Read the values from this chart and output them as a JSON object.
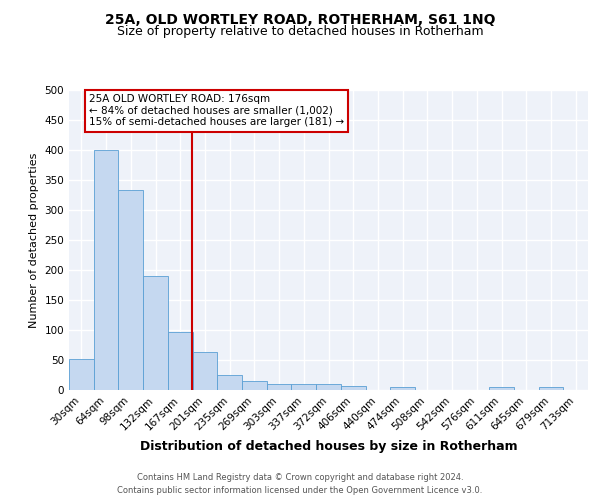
{
  "title": "25A, OLD WORTLEY ROAD, ROTHERHAM, S61 1NQ",
  "subtitle": "Size of property relative to detached houses in Rotherham",
  "xlabel": "Distribution of detached houses by size in Rotherham",
  "ylabel": "Number of detached properties",
  "categories": [
    "30sqm",
    "64sqm",
    "98sqm",
    "132sqm",
    "167sqm",
    "201sqm",
    "235sqm",
    "269sqm",
    "303sqm",
    "337sqm",
    "372sqm",
    "406sqm",
    "440sqm",
    "474sqm",
    "508sqm",
    "542sqm",
    "576sqm",
    "611sqm",
    "645sqm",
    "679sqm",
    "713sqm"
  ],
  "values": [
    52,
    400,
    333,
    190,
    97,
    63,
    25,
    15,
    10,
    10,
    10,
    6,
    0,
    5,
    0,
    0,
    0,
    5,
    0,
    5,
    0
  ],
  "bar_color": "#c5d8f0",
  "bar_edge_color": "#5a9fd4",
  "background_color": "#eef2f9",
  "grid_color": "#ffffff",
  "red_line_x": 4.47,
  "red_line_color": "#cc0000",
  "annotation_text": "25A OLD WORTLEY ROAD: 176sqm\n← 84% of detached houses are smaller (1,002)\n15% of semi-detached houses are larger (181) →",
  "annotation_box_color": "#ffffff",
  "annotation_box_edge": "#cc0000",
  "ylim": [
    0,
    500
  ],
  "yticks": [
    0,
    50,
    100,
    150,
    200,
    250,
    300,
    350,
    400,
    450,
    500
  ],
  "footer_line1": "Contains HM Land Registry data © Crown copyright and database right 2024.",
  "footer_line2": "Contains public sector information licensed under the Open Government Licence v3.0.",
  "title_fontsize": 10,
  "subtitle_fontsize": 9,
  "xlabel_fontsize": 9,
  "ylabel_fontsize": 8,
  "tick_fontsize": 7.5,
  "annotation_fontsize": 7.5,
  "footer_fontsize": 6
}
